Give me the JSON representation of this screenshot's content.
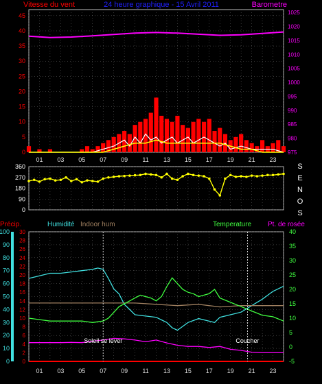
{
  "header": {
    "left": "Vitesse du vent",
    "center": "24 heure graphique - 15 Avril 2011",
    "right": "Barometre"
  },
  "colors": {
    "wind": "#ff0000",
    "gust": "#ffffff",
    "avg_wind": "#ffff00",
    "barometer": "#ff00ff",
    "direction": "#ffff00",
    "humidity": "#40e0e0",
    "indoor_hum": "#a08060",
    "temperature": "#40ff40",
    "dewpoint": "#ff00ff",
    "precip": "#ff0000",
    "grid": "#707070"
  },
  "chart_data": [
    {
      "type": "area",
      "panel": "wind-barometer",
      "title": "24 heure graphique - 15 Avril 2011",
      "ylabel": "Vitesse du vent",
      "ylabel_right": "Barometre",
      "x_ticks": [
        "01",
        "03",
        "05",
        "07",
        "09",
        "11",
        "13",
        "15",
        "17",
        "19",
        "21",
        "23"
      ],
      "x_range": [
        0,
        24
      ],
      "y_ticks": [
        0,
        5,
        10,
        15,
        20,
        25,
        30,
        35,
        40,
        45
      ],
      "ylim": [
        0,
        47
      ],
      "y2_ticks": [
        975,
        980,
        985,
        990,
        995,
        1000,
        1005,
        1010,
        1015,
        1020,
        1025
      ],
      "y2lim": [
        975,
        1026
      ],
      "grid": true,
      "series": [
        {
          "key": "wind",
          "x": [
            0,
            1,
            2,
            3,
            4,
            5,
            5.5,
            6,
            6.5,
            7,
            7.5,
            8,
            8.5,
            9,
            9.5,
            10,
            10.5,
            11,
            11.5,
            12,
            12.5,
            13,
            13.5,
            14,
            14.5,
            15,
            15.5,
            16,
            16.5,
            17,
            17.5,
            18,
            18.5,
            19,
            19.5,
            20,
            20.5,
            21,
            21.5,
            22,
            22.5,
            23,
            23.5,
            24
          ],
          "values": [
            2,
            1,
            1,
            0,
            0,
            1,
            2,
            1,
            2,
            3,
            4,
            5,
            6,
            7,
            6,
            9,
            10,
            11,
            13,
            18,
            12,
            11,
            10,
            12,
            9,
            8,
            10,
            11,
            10,
            11,
            7,
            8,
            6,
            4,
            5,
            6,
            4,
            3,
            2,
            4,
            2,
            3,
            4,
            2
          ]
        },
        {
          "key": "gust",
          "x": [
            0,
            2,
            4,
            6,
            7,
            8,
            8.5,
            9,
            9.5,
            10,
            10.5,
            11,
            11.5,
            12,
            12.5,
            13,
            13.5,
            14,
            14.5,
            15,
            15.5,
            16,
            16.5,
            17,
            17.5,
            18,
            18.5,
            19,
            20,
            21,
            22,
            23,
            24
          ],
          "values": [
            0,
            0,
            0,
            0,
            1,
            2,
            3,
            4,
            2,
            5,
            3,
            6,
            4,
            5,
            3,
            4,
            5,
            3,
            4,
            5,
            3,
            4,
            5,
            4,
            3,
            2,
            3,
            1,
            2,
            1,
            1,
            1,
            0
          ]
        },
        {
          "key": "avg_wind",
          "x": [
            0,
            2,
            4,
            6,
            7,
            8,
            9,
            10,
            11,
            12,
            13,
            14,
            15,
            16,
            17,
            18,
            19,
            20,
            21,
            22,
            23,
            24
          ],
          "values": [
            0,
            0,
            0,
            0,
            0,
            1,
            2,
            3,
            3,
            4,
            3,
            3,
            3,
            3,
            3,
            3,
            2,
            1,
            1,
            0,
            0,
            0
          ]
        },
        {
          "key": "barometer",
          "axis": "right",
          "x": [
            0,
            2,
            4,
            6,
            8,
            10,
            12,
            14,
            16,
            18,
            20,
            22,
            24
          ],
          "values": [
            1016.5,
            1016.0,
            1016.2,
            1016.6,
            1017.1,
            1017.6,
            1017.8,
            1017.6,
            1017.2,
            1016.8,
            1017.0,
            1017.5,
            1018.0
          ]
        }
      ]
    },
    {
      "type": "scatter",
      "panel": "wind-direction",
      "ylabel_right": [
        "S",
        "E",
        "N",
        "O",
        "S"
      ],
      "y_ticks": [
        0,
        90,
        180,
        270,
        360
      ],
      "ylim": [
        0,
        360
      ],
      "x_range": [
        0,
        24
      ],
      "series": [
        {
          "key": "direction",
          "x": [
            0,
            0.5,
            1,
            1.5,
            2,
            2.5,
            3,
            3.5,
            4,
            4.5,
            5,
            5.5,
            6,
            6.5,
            7,
            7.5,
            8,
            8.5,
            9,
            9.5,
            10,
            10.5,
            11,
            11.5,
            12,
            12.5,
            13,
            13.5,
            14,
            14.5,
            15,
            15.5,
            16,
            16.5,
            17,
            17.5,
            18,
            18.5,
            19,
            19.5,
            20,
            20.5,
            21,
            21.5,
            22,
            22.5,
            23,
            23.5,
            24
          ],
          "values": [
            240,
            250,
            235,
            255,
            260,
            245,
            250,
            270,
            240,
            255,
            230,
            245,
            240,
            235,
            260,
            270,
            275,
            280,
            282,
            285,
            288,
            290,
            300,
            295,
            290,
            270,
            300,
            260,
            250,
            280,
            300,
            290,
            285,
            280,
            260,
            170,
            120,
            260,
            290,
            275,
            280,
            275,
            285,
            280,
            285,
            290,
            290,
            295,
            300
          ]
        }
      ]
    },
    {
      "type": "line",
      "panel": "temp-humidity",
      "legend": [
        "Précip.",
        "Humidité",
        "Indoor hum",
        "Temperature",
        "Pt. de rosée"
      ],
      "x_range": [
        0,
        24
      ],
      "y_ticks_humidity": [
        0,
        10,
        20,
        30,
        40,
        50,
        60,
        70,
        80,
        90,
        100
      ],
      "y_ticks_precip": [
        0,
        2,
        4,
        6,
        8,
        10,
        12,
        14,
        16,
        18,
        20,
        22,
        24,
        26,
        28,
        30
      ],
      "y_ticks_temp": [
        -5,
        0,
        5,
        10,
        15,
        20,
        25,
        30,
        35,
        40
      ],
      "ylim_humidity": [
        0,
        100
      ],
      "ylim_temp": [
        -5,
        40
      ],
      "annotations": [
        {
          "text": "Soleil se lever",
          "x": 7.0
        },
        {
          "text": "Coucher",
          "x": 20.6
        }
      ],
      "series": [
        {
          "key": "humidity",
          "axis": "humidity",
          "x": [
            0,
            1,
            2,
            3,
            4,
            5,
            6,
            6.5,
            7,
            7.5,
            8,
            8.5,
            9,
            9.5,
            10,
            11,
            12,
            12.5,
            13,
            13.5,
            14,
            14.5,
            15,
            16,
            17,
            17.5,
            18,
            19,
            20,
            21,
            22,
            23,
            24
          ],
          "values": [
            64,
            66,
            68,
            68,
            69,
            70,
            71,
            72,
            71,
            64,
            56,
            52,
            44,
            40,
            36,
            35,
            34,
            32,
            30,
            26,
            24,
            27,
            30,
            33,
            31,
            30,
            34,
            36,
            38,
            43,
            48,
            54,
            58
          ]
        },
        {
          "key": "indoor_hum",
          "axis": "humidity",
          "x": [
            0,
            2,
            4,
            6,
            8,
            10,
            12,
            14,
            16,
            18,
            20,
            22,
            24
          ],
          "values": [
            45,
            45,
            45,
            45,
            45,
            45,
            44,
            43,
            44,
            42,
            43,
            43,
            43
          ]
        },
        {
          "key": "temperature",
          "axis": "temp",
          "x": [
            0,
            1,
            2,
            3,
            4,
            5,
            6,
            7,
            7.5,
            8,
            8.5,
            9,
            9.5,
            10,
            10.5,
            11,
            11.5,
            12,
            12.5,
            13,
            13.5,
            14,
            14.5,
            15,
            15.5,
            16,
            16.5,
            17,
            17.5,
            18,
            19,
            20,
            21,
            22,
            23,
            24
          ],
          "values": [
            10,
            9.5,
            9,
            9,
            9,
            9,
            8.5,
            9,
            10,
            12,
            14,
            15,
            16,
            17,
            18,
            17.5,
            17,
            16,
            17.5,
            21,
            24,
            22,
            20,
            19,
            18.5,
            17.5,
            18,
            18.5,
            20,
            17,
            15.5,
            14,
            12.5,
            11,
            10.5,
            9
          ]
        },
        {
          "key": "dewpoint",
          "axis": "temp",
          "x": [
            0,
            1,
            2,
            3,
            4,
            5,
            6,
            7,
            8,
            9,
            10,
            11,
            12,
            13,
            14,
            15,
            16,
            17,
            18,
            19,
            20,
            21,
            22,
            23,
            24
          ],
          "values": [
            1.5,
            1.5,
            1.5,
            1.5,
            1.6,
            1.5,
            2.0,
            2.4,
            3.0,
            2.8,
            2.4,
            1.8,
            2.4,
            1.4,
            0.6,
            0.2,
            0.2,
            -0.2,
            0.2,
            -0.8,
            -1.2,
            -1.8,
            -2.0,
            -2.0,
            -2.0
          ]
        },
        {
          "key": "precip",
          "axis": "precip",
          "x": [
            0,
            24
          ],
          "values": [
            0,
            0
          ]
        }
      ]
    }
  ]
}
